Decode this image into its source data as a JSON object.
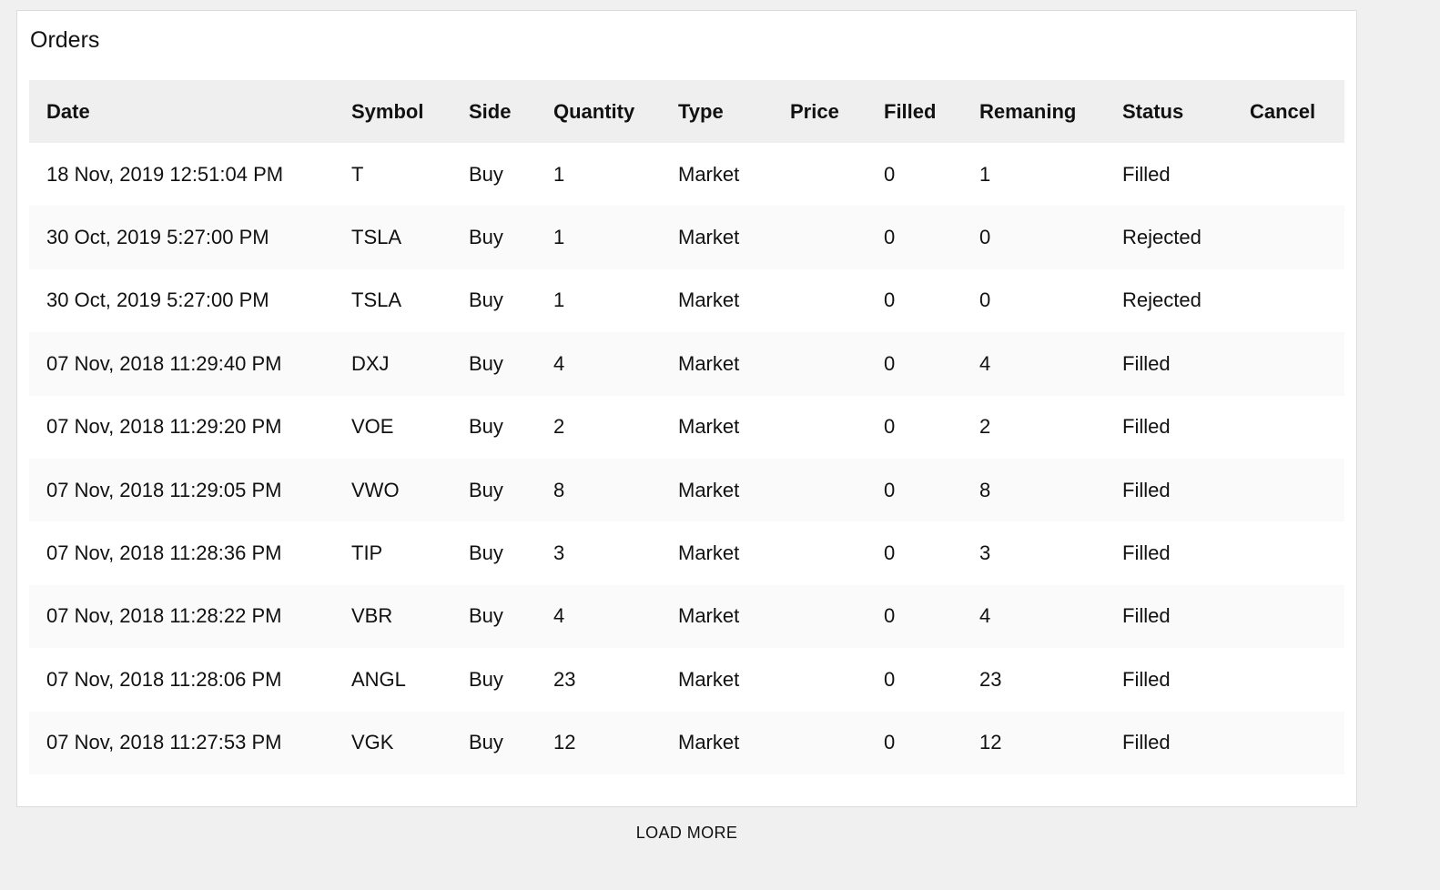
{
  "card": {
    "title": "Orders"
  },
  "table": {
    "columns": [
      "Date",
      "Symbol",
      "Side",
      "Quantity",
      "Type",
      "Price",
      "Filled",
      "Remaning",
      "Status",
      "Cancel"
    ],
    "rows": [
      [
        "18 Nov, 2019 12:51:04 PM",
        "T",
        "Buy",
        "1",
        "Market",
        "",
        "0",
        "1",
        "Filled",
        ""
      ],
      [
        "30 Oct, 2019 5:27:00 PM",
        "TSLA",
        "Buy",
        "1",
        "Market",
        "",
        "0",
        "0",
        "Rejected",
        ""
      ],
      [
        "30 Oct, 2019 5:27:00 PM",
        "TSLA",
        "Buy",
        "1",
        "Market",
        "",
        "0",
        "0",
        "Rejected",
        ""
      ],
      [
        "07 Nov, 2018 11:29:40 PM",
        "DXJ",
        "Buy",
        "4",
        "Market",
        "",
        "0",
        "4",
        "Filled",
        ""
      ],
      [
        "07 Nov, 2018 11:29:20 PM",
        "VOE",
        "Buy",
        "2",
        "Market",
        "",
        "0",
        "2",
        "Filled",
        ""
      ],
      [
        "07 Nov, 2018 11:29:05 PM",
        "VWO",
        "Buy",
        "8",
        "Market",
        "",
        "0",
        "8",
        "Filled",
        ""
      ],
      [
        "07 Nov, 2018 11:28:36 PM",
        "TIP",
        "Buy",
        "3",
        "Market",
        "",
        "0",
        "3",
        "Filled",
        ""
      ],
      [
        "07 Nov, 2018 11:28:22 PM",
        "VBR",
        "Buy",
        "4",
        "Market",
        "",
        "0",
        "4",
        "Filled",
        ""
      ],
      [
        "07 Nov, 2018 11:28:06 PM",
        "ANGL",
        "Buy",
        "23",
        "Market",
        "",
        "0",
        "23",
        "Filled",
        ""
      ],
      [
        "07 Nov, 2018 11:27:53 PM",
        "VGK",
        "Buy",
        "12",
        "Market",
        "",
        "0",
        "12",
        "Filled",
        ""
      ]
    ]
  },
  "footer": {
    "load_more_label": "LOAD MORE"
  }
}
